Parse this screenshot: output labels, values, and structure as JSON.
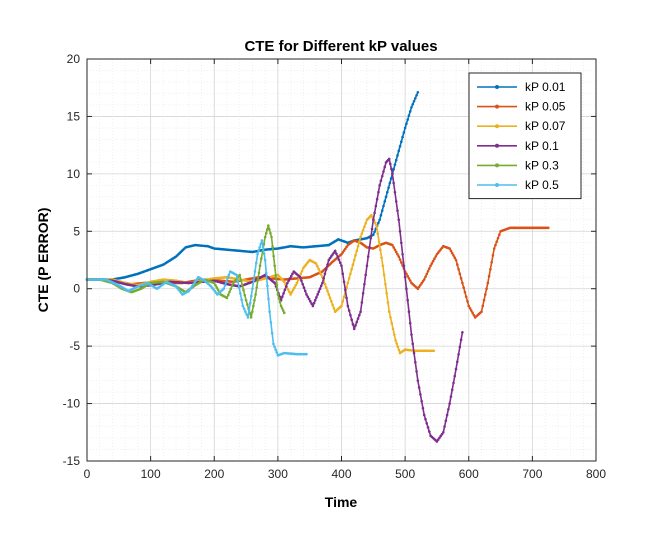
{
  "chart_data": {
    "type": "line",
    "title": "CTE for Different kP values",
    "xlabel": "Time",
    "ylabel": "CTE (P ERROR)",
    "xlim": [
      0,
      800
    ],
    "ylim": [
      -15,
      20
    ],
    "xticks": [
      0,
      100,
      200,
      300,
      400,
      500,
      600,
      700,
      800
    ],
    "yticks": [
      20,
      15,
      10,
      5,
      0,
      -5,
      -10,
      -15
    ],
    "grid": "on",
    "legend_position": "top-right",
    "series": [
      {
        "name": "kP 0.01",
        "color": "#0072BD",
        "points": [
          [
            0,
            0.8
          ],
          [
            20,
            0.8
          ],
          [
            40,
            0.8
          ],
          [
            60,
            1.0
          ],
          [
            80,
            1.3
          ],
          [
            100,
            1.7
          ],
          [
            120,
            2.1
          ],
          [
            140,
            2.8
          ],
          [
            155,
            3.6
          ],
          [
            170,
            3.8
          ],
          [
            190,
            3.7
          ],
          [
            200,
            3.5
          ],
          [
            220,
            3.4
          ],
          [
            240,
            3.3
          ],
          [
            260,
            3.2
          ],
          [
            280,
            3.4
          ],
          [
            300,
            3.5
          ],
          [
            320,
            3.7
          ],
          [
            340,
            3.6
          ],
          [
            360,
            3.7
          ],
          [
            380,
            3.8
          ],
          [
            395,
            4.3
          ],
          [
            410,
            4.0
          ],
          [
            420,
            4.2
          ],
          [
            440,
            4.4
          ],
          [
            450,
            4.7
          ],
          [
            460,
            6.0
          ],
          [
            470,
            8.0
          ],
          [
            480,
            10.0
          ],
          [
            490,
            12.0
          ],
          [
            500,
            14.0
          ],
          [
            510,
            15.8
          ],
          [
            520,
            17.1
          ]
        ]
      },
      {
        "name": "kP 0.05",
        "color": "#D95319",
        "points": [
          [
            0,
            0.8
          ],
          [
            30,
            0.8
          ],
          [
            50,
            0.6
          ],
          [
            70,
            0.4
          ],
          [
            90,
            0.5
          ],
          [
            110,
            0.6
          ],
          [
            130,
            0.5
          ],
          [
            150,
            0.5
          ],
          [
            170,
            0.7
          ],
          [
            190,
            0.8
          ],
          [
            210,
            0.7
          ],
          [
            230,
            0.6
          ],
          [
            250,
            0.8
          ],
          [
            270,
            1.0
          ],
          [
            290,
            0.9
          ],
          [
            310,
            0.8
          ],
          [
            330,
            0.9
          ],
          [
            350,
            1.0
          ],
          [
            370,
            1.5
          ],
          [
            385,
            2.3
          ],
          [
            400,
            3.0
          ],
          [
            410,
            3.8
          ],
          [
            420,
            4.2
          ],
          [
            430,
            4.0
          ],
          [
            440,
            3.6
          ],
          [
            450,
            3.5
          ],
          [
            460,
            3.8
          ],
          [
            470,
            4.0
          ],
          [
            480,
            3.8
          ],
          [
            490,
            2.8
          ],
          [
            500,
            1.5
          ],
          [
            510,
            0.5
          ],
          [
            520,
            0.0
          ],
          [
            530,
            0.8
          ],
          [
            540,
            2.0
          ],
          [
            550,
            3.0
          ],
          [
            560,
            3.7
          ],
          [
            570,
            3.5
          ],
          [
            580,
            2.5
          ],
          [
            590,
            0.5
          ],
          [
            600,
            -1.5
          ],
          [
            610,
            -2.5
          ],
          [
            620,
            -2.0
          ],
          [
            630,
            0.5
          ],
          [
            640,
            3.5
          ],
          [
            650,
            5.0
          ],
          [
            665,
            5.3
          ],
          [
            700,
            5.3
          ],
          [
            725,
            5.3
          ]
        ]
      },
      {
        "name": "kP 0.07",
        "color": "#EDB120",
        "points": [
          [
            0,
            0.8
          ],
          [
            40,
            0.8
          ],
          [
            60,
            0.5
          ],
          [
            80,
            0.3
          ],
          [
            100,
            0.6
          ],
          [
            120,
            0.8
          ],
          [
            140,
            0.7
          ],
          [
            160,
            0.5
          ],
          [
            180,
            0.7
          ],
          [
            200,
            0.9
          ],
          [
            220,
            1.0
          ],
          [
            240,
            0.8
          ],
          [
            260,
            0.6
          ],
          [
            280,
            0.9
          ],
          [
            300,
            1.2
          ],
          [
            310,
            0.6
          ],
          [
            320,
            -0.5
          ],
          [
            330,
            0.5
          ],
          [
            340,
            1.8
          ],
          [
            350,
            2.5
          ],
          [
            360,
            2.2
          ],
          [
            370,
            1.0
          ],
          [
            380,
            -0.5
          ],
          [
            390,
            -2.0
          ],
          [
            400,
            -1.5
          ],
          [
            410,
            0.5
          ],
          [
            420,
            2.5
          ],
          [
            430,
            4.5
          ],
          [
            440,
            6.0
          ],
          [
            447,
            6.4
          ],
          [
            455,
            5.5
          ],
          [
            465,
            2.0
          ],
          [
            475,
            -2.0
          ],
          [
            485,
            -4.5
          ],
          [
            492,
            -5.6
          ],
          [
            500,
            -5.3
          ],
          [
            515,
            -5.4
          ],
          [
            530,
            -5.4
          ],
          [
            545,
            -5.4
          ]
        ]
      },
      {
        "name": "kP 0.1",
        "color": "#7E2F8E",
        "points": [
          [
            0,
            0.8
          ],
          [
            20,
            0.8
          ],
          [
            40,
            0.7
          ],
          [
            60,
            0.4
          ],
          [
            80,
            0.2
          ],
          [
            100,
            0.3
          ],
          [
            130,
            0.6
          ],
          [
            160,
            0.5
          ],
          [
            180,
            0.6
          ],
          [
            200,
            0.7
          ],
          [
            220,
            0.4
          ],
          [
            240,
            0.2
          ],
          [
            260,
            0.6
          ],
          [
            280,
            1.2
          ],
          [
            295,
            0.5
          ],
          [
            305,
            -1.0
          ],
          [
            315,
            0.5
          ],
          [
            325,
            1.5
          ],
          [
            335,
            1.0
          ],
          [
            345,
            -0.5
          ],
          [
            355,
            -1.5
          ],
          [
            370,
            0.5
          ],
          [
            380,
            2.5
          ],
          [
            390,
            3.3
          ],
          [
            400,
            2.0
          ],
          [
            410,
            -1.5
          ],
          [
            420,
            -3.5
          ],
          [
            430,
            -2.0
          ],
          [
            440,
            2.0
          ],
          [
            450,
            6.0
          ],
          [
            460,
            9.0
          ],
          [
            470,
            11.0
          ],
          [
            475,
            11.3
          ],
          [
            480,
            10.0
          ],
          [
            490,
            6.0
          ],
          [
            500,
            1.0
          ],
          [
            510,
            -4.0
          ],
          [
            520,
            -8.0
          ],
          [
            530,
            -11.0
          ],
          [
            540,
            -12.8
          ],
          [
            550,
            -13.3
          ],
          [
            560,
            -12.5
          ],
          [
            570,
            -10.0
          ],
          [
            580,
            -7.0
          ],
          [
            590,
            -3.8
          ]
        ]
      },
      {
        "name": "kP 0.3",
        "color": "#77AC30",
        "points": [
          [
            0,
            0.8
          ],
          [
            20,
            0.8
          ],
          [
            40,
            0.5
          ],
          [
            55,
            0.0
          ],
          [
            70,
            -0.3
          ],
          [
            85,
            0.0
          ],
          [
            100,
            0.5
          ],
          [
            120,
            0.6
          ],
          [
            140,
            0.2
          ],
          [
            155,
            -0.3
          ],
          [
            170,
            0.3
          ],
          [
            185,
            0.8
          ],
          [
            200,
            0.5
          ],
          [
            210,
            -0.5
          ],
          [
            220,
            -0.8
          ],
          [
            230,
            0.5
          ],
          [
            240,
            1.2
          ],
          [
            250,
            -1.0
          ],
          [
            258,
            -2.5
          ],
          [
            265,
            -0.5
          ],
          [
            272,
            2.0
          ],
          [
            280,
            4.5
          ],
          [
            285,
            5.5
          ],
          [
            290,
            4.5
          ],
          [
            295,
            2.0
          ],
          [
            300,
            -0.5
          ],
          [
            305,
            -1.5
          ],
          [
            310,
            -2.1
          ]
        ]
      },
      {
        "name": "kP 0.5",
        "color": "#4DBEEE",
        "points": [
          [
            0,
            0.8
          ],
          [
            30,
            0.8
          ],
          [
            50,
            0.3
          ],
          [
            65,
            -0.2
          ],
          [
            80,
            0.2
          ],
          [
            95,
            0.5
          ],
          [
            110,
            0.0
          ],
          [
            125,
            0.6
          ],
          [
            140,
            0.2
          ],
          [
            150,
            -0.5
          ],
          [
            160,
            -0.2
          ],
          [
            175,
            1.0
          ],
          [
            185,
            0.7
          ],
          [
            195,
            0.2
          ],
          [
            205,
            -0.5
          ],
          [
            215,
            0.0
          ],
          [
            225,
            1.5
          ],
          [
            235,
            1.2
          ],
          [
            245,
            -1.5
          ],
          [
            253,
            -2.5
          ],
          [
            260,
            0.0
          ],
          [
            268,
            3.0
          ],
          [
            275,
            4.2
          ],
          [
            280,
            2.5
          ],
          [
            287,
            -2.0
          ],
          [
            293,
            -4.8
          ],
          [
            300,
            -5.8
          ],
          [
            310,
            -5.6
          ],
          [
            330,
            -5.7
          ],
          [
            345,
            -5.7
          ]
        ]
      }
    ]
  }
}
